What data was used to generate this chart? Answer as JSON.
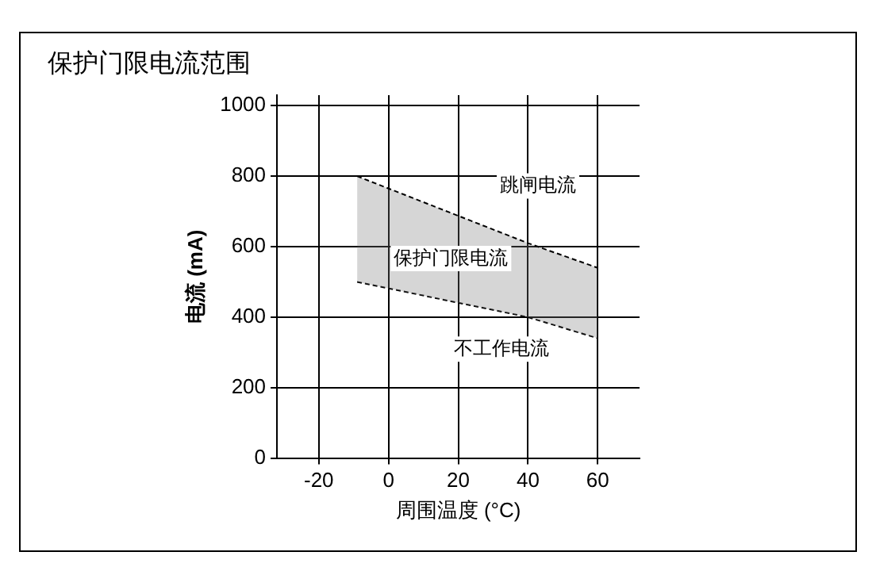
{
  "chart_data": {
    "type": "line",
    "title": "保护门限电流范围",
    "xlabel": "周围温度 (°C)",
    "ylabel": "电流 (mA)",
    "x": [
      -9,
      40,
      60
    ],
    "series": [
      {
        "color": "#000000",
        "values": [
          800,
          610,
          540
        ]
      },
      {
        "color": "#000000",
        "values": [
          500,
          400,
          340
        ],
        "lower": [
          500,
          400,
          340
        ],
        "upper": [
          800,
          610,
          540
        ]
      }
    ],
    "xlim": [
      -32,
      72
    ],
    "xticks": [
      -20,
      0,
      20,
      40,
      60
    ],
    "ylim": [
      0,
      1030
    ],
    "yticks": [
      0,
      200,
      400,
      600,
      800,
      1000
    ],
    "grid": true,
    "legend": false,
    "marker": "none",
    "line_style": "dashed",
    "annotations": [
      "跳闸电流",
      "保护门限电流",
      "不工作电流"
    ]
  }
}
